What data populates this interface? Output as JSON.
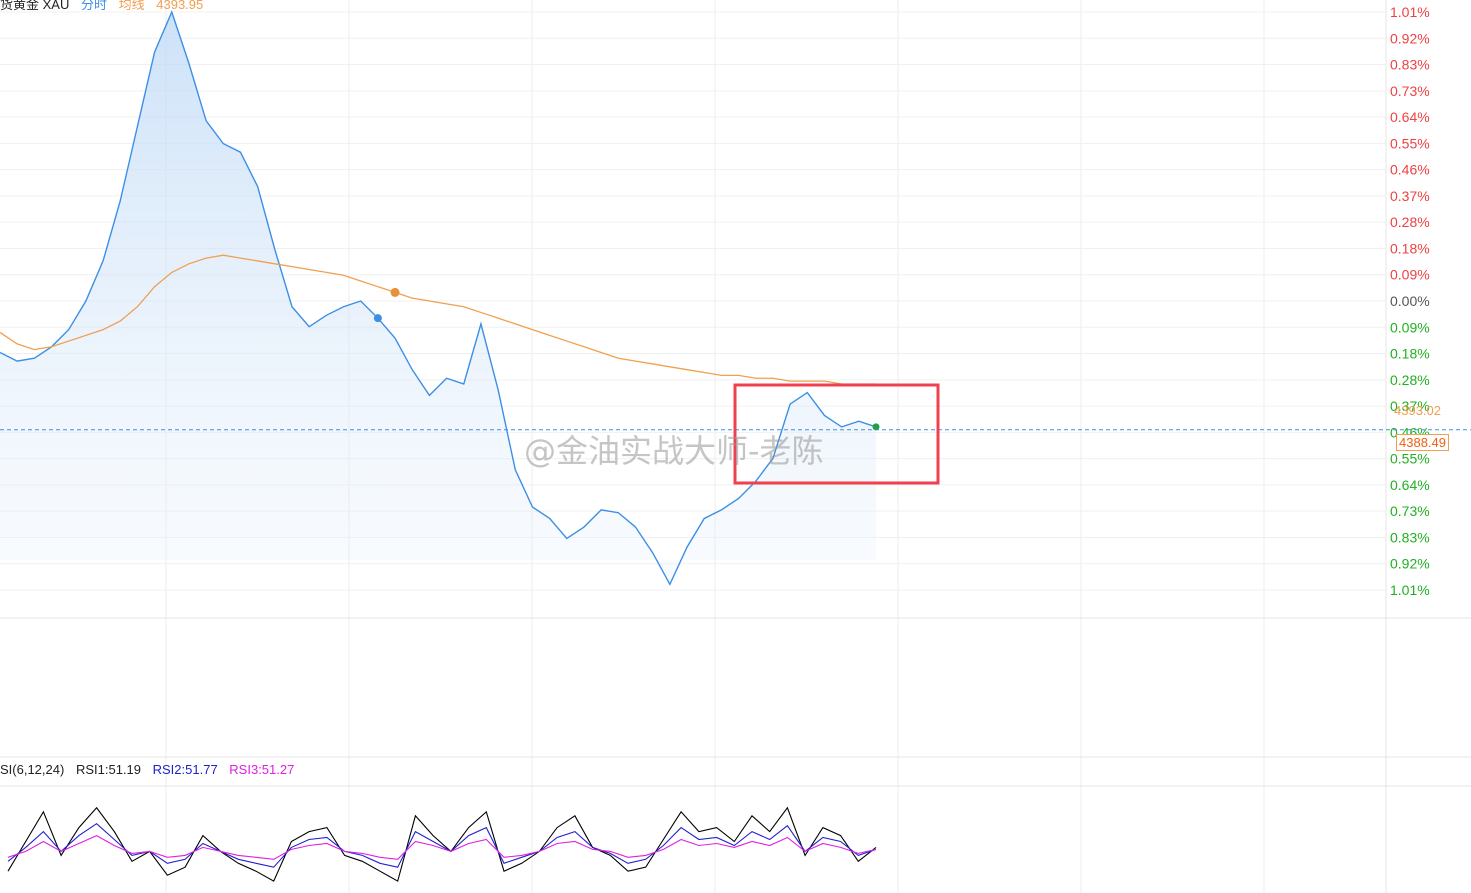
{
  "header": {
    "instrument": "货黄金 XAU",
    "mode_label": "分时",
    "avg_label": "均线",
    "avg_value": "4393.95"
  },
  "price_tags": {
    "last": "4393.02",
    "current": "4388.49"
  },
  "rsi_header": {
    "params": "SI(6,12,24)",
    "rsi1": "RSI1:51.19",
    "rsi2": "RSI2:51.77",
    "rsi3": "RSI3:51.27"
  },
  "watermark": "@金油实战大师-老陈",
  "colors": {
    "price_line": "#3d8fe6",
    "avg_line": "#f0a050",
    "up": "#f04040",
    "down": "#20b020",
    "neutral": "#555555",
    "highlight_box": "#f04050",
    "rsi1": "#000000",
    "rsi2": "#2020d0",
    "rsi3": "#e020e0"
  },
  "chart_data": {
    "type": "line",
    "title": "货黄金 XAU 分时",
    "y_axis_ticks": [
      "1.01%",
      "0.92%",
      "0.83%",
      "0.73%",
      "0.64%",
      "0.55%",
      "0.46%",
      "0.37%",
      "0.28%",
      "0.18%",
      "0.09%",
      "0.00%",
      "0.09%",
      "0.18%",
      "0.28%",
      "0.37%",
      "0.46%",
      "0.55%",
      "0.64%",
      "0.73%",
      "0.83%",
      "0.92%",
      "1.01%"
    ],
    "y_axis_colors": [
      "up",
      "up",
      "up",
      "up",
      "up",
      "up",
      "up",
      "up",
      "up",
      "up",
      "up",
      "neutral",
      "down",
      "down",
      "down",
      "down",
      "down",
      "down",
      "down",
      "down",
      "down",
      "down",
      "down"
    ],
    "ylim_pct": [
      -1.01,
      1.01
    ],
    "series": [
      {
        "name": "分时",
        "values": [
          -0.18,
          -0.21,
          -0.2,
          -0.16,
          -0.1,
          0.0,
          0.14,
          0.35,
          0.61,
          0.87,
          1.01,
          0.83,
          0.63,
          0.55,
          0.52,
          0.4,
          0.18,
          -0.02,
          -0.09,
          -0.05,
          -0.02,
          0.0,
          -0.06,
          -0.13,
          -0.24,
          -0.33,
          -0.27,
          -0.29,
          -0.08,
          -0.31,
          -0.59,
          -0.72,
          -0.76,
          -0.83,
          -0.79,
          -0.73,
          -0.74,
          -0.79,
          -0.88,
          -0.99,
          -0.86,
          -0.76,
          -0.73,
          -0.69,
          -0.63,
          -0.55,
          -0.36,
          -0.32,
          -0.4,
          -0.44,
          -0.42,
          -0.44
        ]
      },
      {
        "name": "均线",
        "values": [
          -0.11,
          -0.15,
          -0.17,
          -0.16,
          -0.14,
          -0.12,
          -0.1,
          -0.07,
          -0.02,
          0.05,
          0.1,
          0.13,
          0.15,
          0.16,
          0.15,
          0.14,
          0.13,
          0.12,
          0.11,
          0.1,
          0.09,
          0.07,
          0.05,
          0.03,
          0.01,
          0.0,
          -0.01,
          -0.02,
          -0.04,
          -0.06,
          -0.08,
          -0.1,
          -0.12,
          -0.14,
          -0.16,
          -0.18,
          -0.2,
          -0.21,
          -0.22,
          -0.23,
          -0.24,
          -0.25,
          -0.26,
          -0.26,
          -0.27,
          -0.27,
          -0.28,
          -0.28,
          -0.28,
          -0.29,
          -0.29,
          -0.29
        ]
      }
    ],
    "current_price_pct": -0.45,
    "rsi": {
      "rsi1": [
        40,
        55,
        70,
        48,
        62,
        72,
        60,
        45,
        50,
        38,
        42,
        58,
        50,
        44,
        40,
        35,
        55,
        60,
        62,
        48,
        45,
        40,
        35,
        68,
        58,
        50,
        62,
        70,
        40,
        44,
        50,
        62,
        68,
        52,
        48,
        40,
        42,
        56,
        70,
        60,
        62,
        55,
        68,
        60,
        72,
        48,
        62,
        58,
        45,
        52
      ],
      "rsi2": [
        45,
        52,
        60,
        50,
        58,
        64,
        56,
        48,
        50,
        44,
        46,
        54,
        50,
        46,
        44,
        42,
        52,
        56,
        57,
        50,
        48,
        44,
        42,
        60,
        55,
        50,
        58,
        62,
        44,
        47,
        50,
        57,
        60,
        52,
        49,
        44,
        46,
        53,
        62,
        56,
        57,
        53,
        60,
        56,
        63,
        50,
        57,
        55,
        48,
        51
      ],
      "rsi3": [
        47,
        50,
        55,
        50,
        54,
        58,
        53,
        49,
        50,
        47,
        48,
        52,
        50,
        48,
        47,
        46,
        51,
        53,
        54,
        50,
        49,
        47,
        46,
        55,
        53,
        50,
        54,
        56,
        47,
        48,
        50,
        54,
        55,
        51,
        50,
        47,
        48,
        51,
        56,
        53,
        54,
        52,
        55,
        53,
        57,
        50,
        54,
        52,
        49,
        51
      ]
    }
  }
}
